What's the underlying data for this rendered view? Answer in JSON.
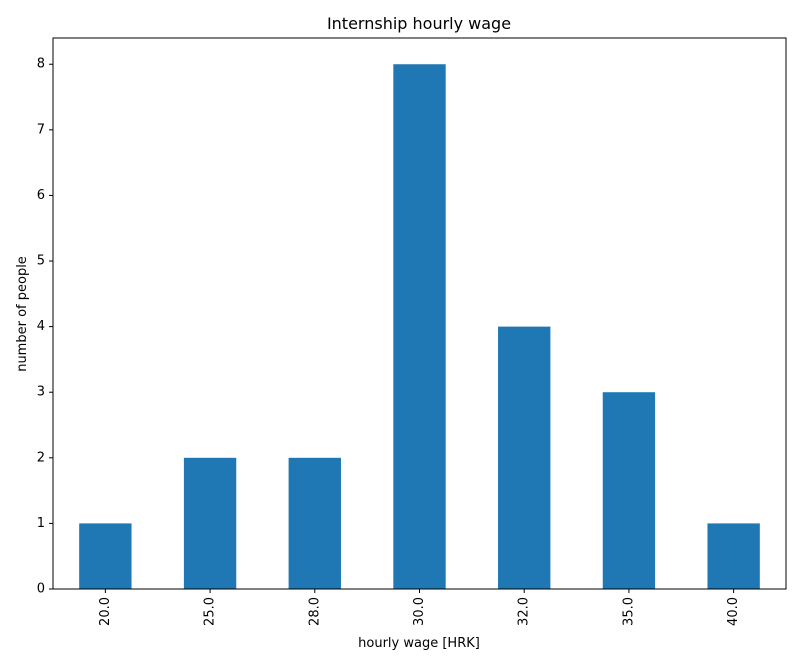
{
  "chart_data": {
    "type": "bar",
    "title": "Internship hourly wage",
    "xlabel": "hourly wage [HRK]",
    "ylabel": "number of people",
    "categories": [
      "20.0",
      "25.0",
      "28.0",
      "30.0",
      "32.0",
      "35.0",
      "40.0"
    ],
    "values": [
      1,
      2,
      2,
      8,
      4,
      3,
      1
    ],
    "ylim": [
      0,
      8.4
    ],
    "yticks": [
      0,
      1,
      2,
      3,
      4,
      5,
      6,
      7,
      8
    ],
    "grid": false,
    "legend": "none",
    "bar_color": "#1f77b4",
    "x_tick_rotation": "vertical"
  }
}
